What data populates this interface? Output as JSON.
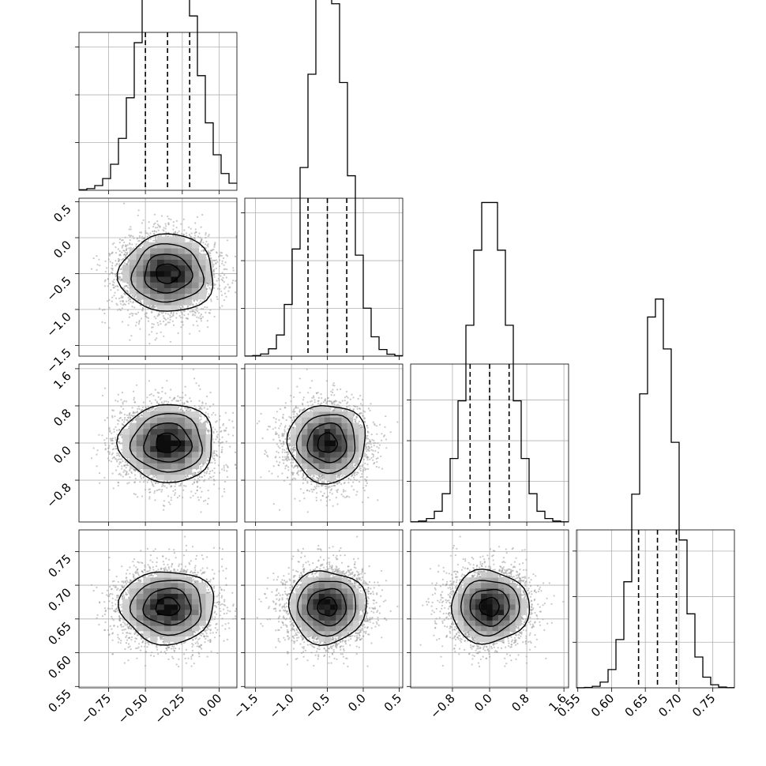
{
  "chart_data": {
    "type": "corner",
    "parameters": [
      {
        "mean": -0.35,
        "sd": 0.16,
        "range": [
          -0.95,
          0.12
        ],
        "ticks": [
          -0.75,
          -0.5,
          -0.25,
          0.0
        ],
        "tick_labels": [
          "−0.75",
          "−0.50",
          "−0.25",
          "0.00"
        ],
        "quantiles": [
          -0.5,
          -0.35,
          -0.2
        ],
        "hist_max": 0.063
      },
      {
        "mean": -0.5,
        "sd": 0.27,
        "range": [
          -1.65,
          0.55
        ],
        "ticks": [
          -1.5,
          -1.0,
          -0.5,
          0.0,
          0.5
        ],
        "tick_labels": [
          "−1.5",
          "−1.0",
          "−0.5",
          "0.0",
          "0.5"
        ],
        "quantiles": [
          -0.77,
          -0.5,
          -0.23
        ],
        "hist_max": 0.063
      },
      {
        "mean": 0.0,
        "sd": 0.42,
        "range": [
          -1.7,
          1.7
        ],
        "ticks": [
          -0.8,
          0.0,
          0.8,
          1.6
        ],
        "tick_labels": [
          "−0.8",
          "0.0",
          "0.8",
          "1.6"
        ],
        "quantiles": [
          -0.42,
          0.0,
          0.42
        ],
        "hist_max": 0.074
      },
      {
        "mean": 0.668,
        "sd": 0.027,
        "range": [
          0.548,
          0.782
        ],
        "ticks": [
          0.55,
          0.6,
          0.65,
          0.7,
          0.75
        ],
        "tick_labels": [
          "0.55",
          "0.60",
          "0.65",
          "0.70",
          "0.75"
        ],
        "quantiles": [
          0.64,
          0.668,
          0.696
        ],
        "hist_max": 0.066
      }
    ],
    "hist_bins": 20,
    "hist_y_ticks": [
      0.02,
      0.04,
      0.06
    ],
    "contour_levels": [
      0.5,
      1.0,
      1.5,
      2.0
    ],
    "grid": true,
    "colors": {
      "points": "#9a9a9a",
      "lines": "#000000"
    }
  }
}
